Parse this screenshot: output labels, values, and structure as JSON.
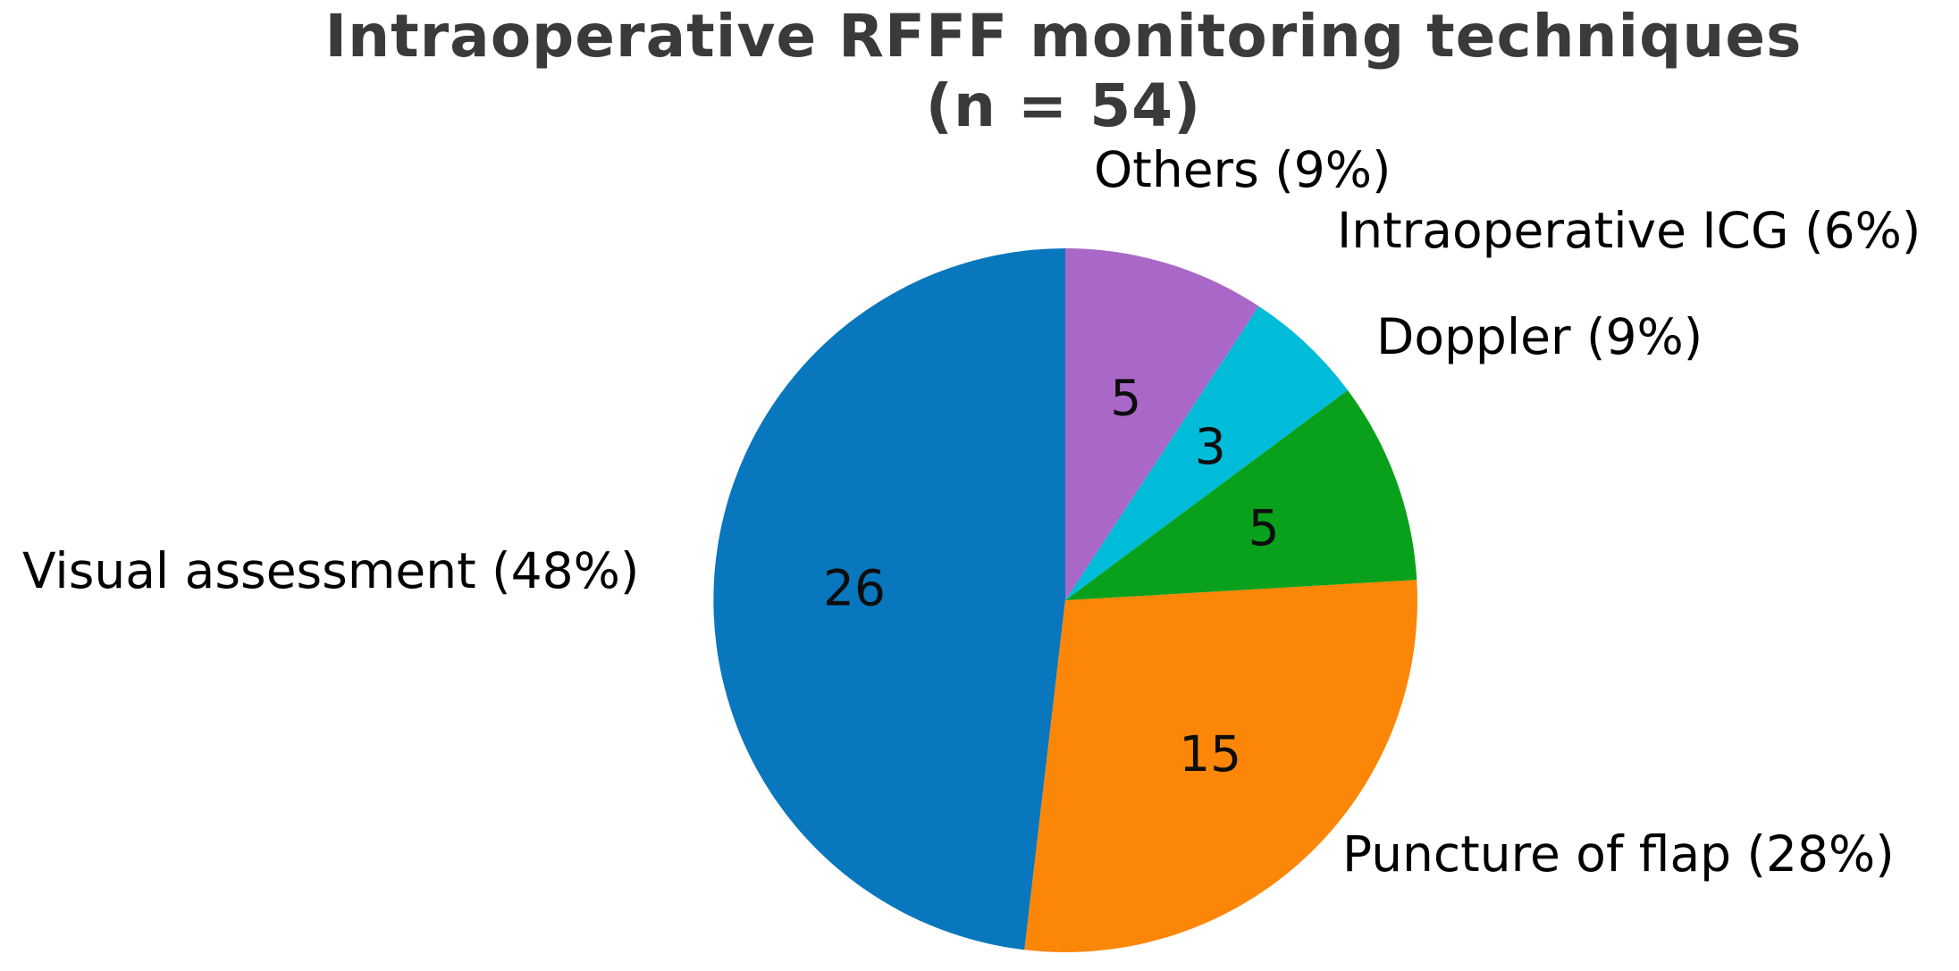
{
  "figure": {
    "title_line1": "Intraoperative RFFF monitoring techniques",
    "title_line2": "(n = 54)"
  },
  "chart_data": {
    "type": "pie",
    "title": "Intraoperative RFFF monitoring techniques (n = 54)",
    "n_total": 54,
    "start_angle": 90,
    "counterclock": true,
    "value_label_distance": 0.6,
    "legend_position": "none",
    "grid": false,
    "slices": [
      {
        "label": "Visual assessment",
        "callout": "Visual assessment (48%)",
        "value": 26,
        "pct": 48,
        "color": "#0877bd"
      },
      {
        "label": "Puncture of flap",
        "callout": "Puncture of flap (28%)",
        "value": 15,
        "pct": 28,
        "color": "#fc8608"
      },
      {
        "label": "Doppler",
        "callout": "Doppler (9%)",
        "value": 5,
        "pct": 9,
        "color": "#09a11b"
      },
      {
        "label": "Intraoperative ICG",
        "callout": "Intraoperative ICG (6%)",
        "value": 3,
        "pct": 6,
        "color": "#00bcd8"
      },
      {
        "label": "Others",
        "callout": "Others (9%)",
        "value": 5,
        "pct": 9,
        "color": "#a968c8"
      }
    ]
  }
}
